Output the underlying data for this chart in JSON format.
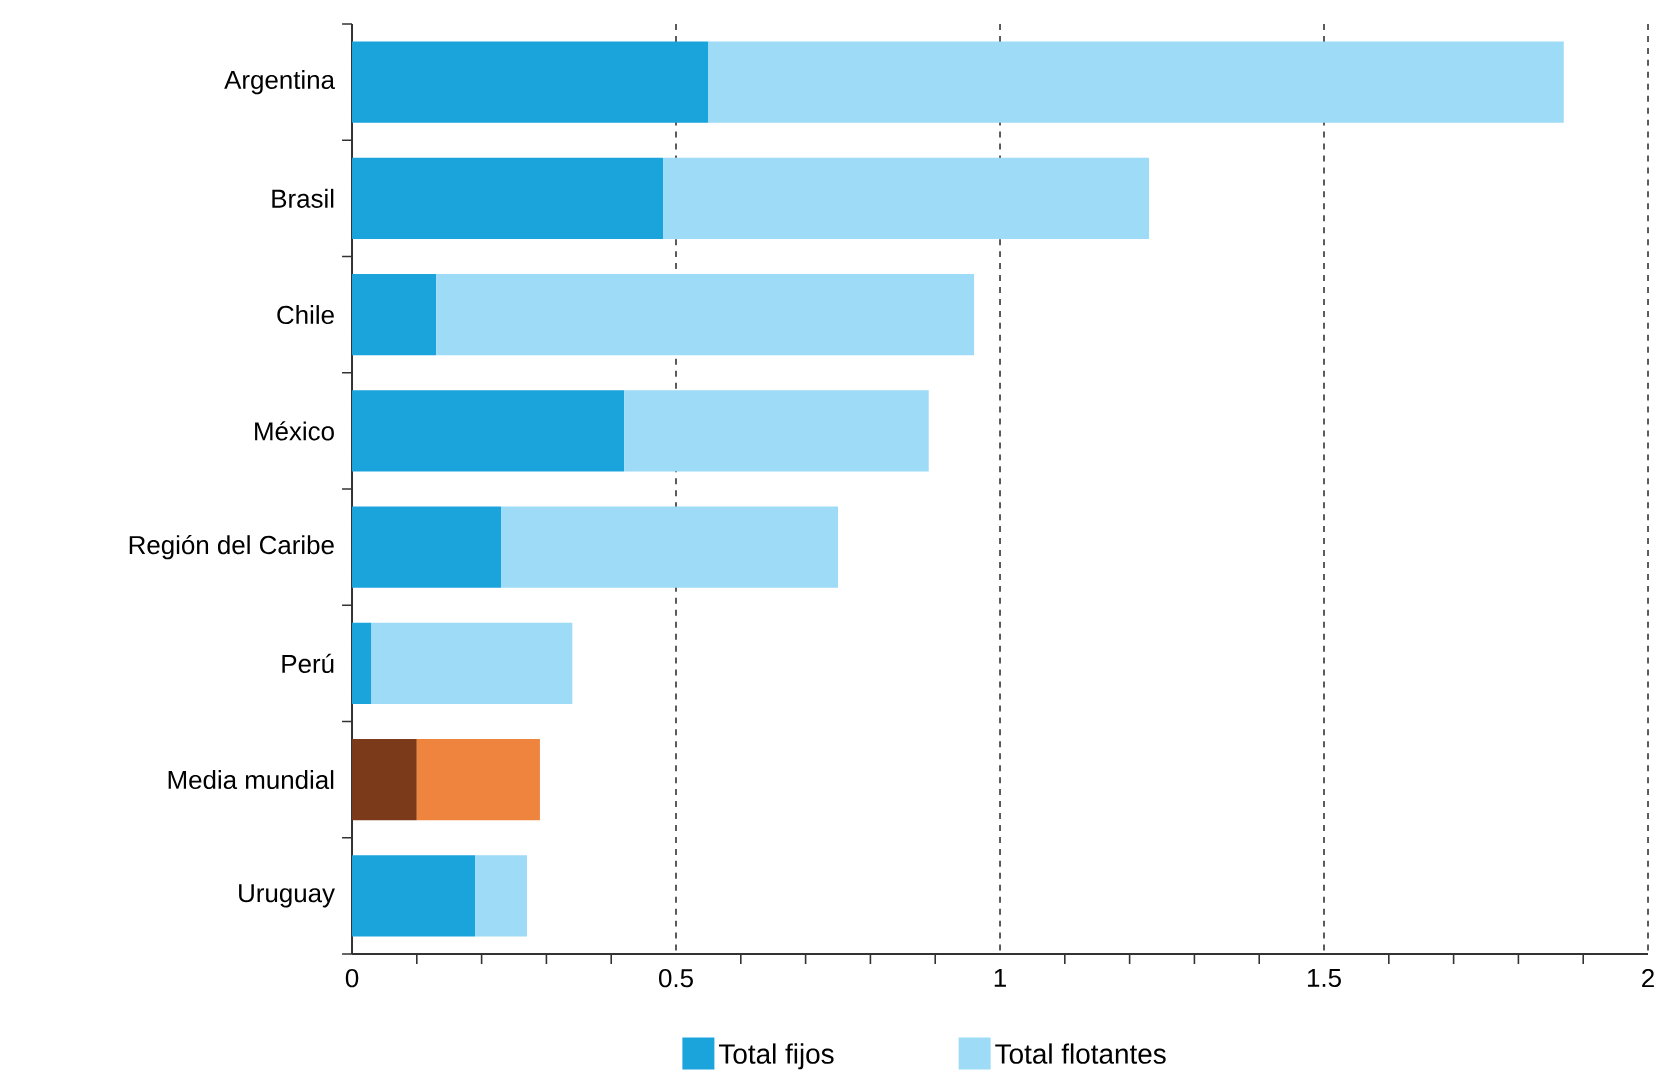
{
  "chart_data": {
    "type": "bar",
    "orientation": "horizontal",
    "stacked": true,
    "categories": [
      "Argentina",
      "Brasil",
      "Chile",
      "México",
      "Región del Caribe",
      "Perú",
      "Media mundial",
      "Uruguay"
    ],
    "series": [
      {
        "name": "Total fijos",
        "color": "#1ba3dc",
        "colors": [
          "#1ba3dc",
          "#1ba3dc",
          "#1ba3dc",
          "#1ba3dc",
          "#1ba3dc",
          "#1ba3dc",
          "#7b3b1a",
          "#1ba3dc"
        ],
        "values": [
          0.55,
          0.48,
          0.13,
          0.42,
          0.23,
          0.03,
          0.1,
          0.19
        ]
      },
      {
        "name": "Total flotantes",
        "color": "#9ddbf7",
        "colors": [
          "#9ddbf7",
          "#9ddbf7",
          "#9ddbf7",
          "#9ddbf7",
          "#9ddbf7",
          "#9ddbf7",
          "#ef843f",
          "#9ddbf7"
        ],
        "values": [
          1.32,
          0.75,
          0.83,
          0.47,
          0.52,
          0.31,
          0.19,
          0.08
        ]
      }
    ],
    "xlim": [
      0,
      2
    ],
    "xticks": [
      0,
      0.5,
      1,
      1.5,
      2
    ],
    "grid": "x",
    "legend": "bottom"
  }
}
